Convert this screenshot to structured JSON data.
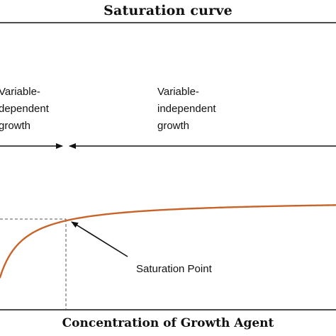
{
  "chart_data": {
    "type": "line",
    "title": "Saturation curve",
    "xlabel": "Concentration of Growth Agent",
    "ylabel": "",
    "grid": false,
    "legend": "none",
    "series": [
      {
        "color": "#c8642a",
        "shape": "saturating-hyperbola"
      }
    ],
    "regions": {
      "dependent": [
        "Variable-",
        "dependent",
        "growth"
      ],
      "independent": [
        "Variable-",
        "independent",
        "growth"
      ]
    },
    "annotations": {
      "saturation_point": "Saturation Point"
    },
    "colors": {
      "curve": "#c8642a",
      "axis": "#111111",
      "guide": "#555555",
      "text": "#111111"
    }
  }
}
